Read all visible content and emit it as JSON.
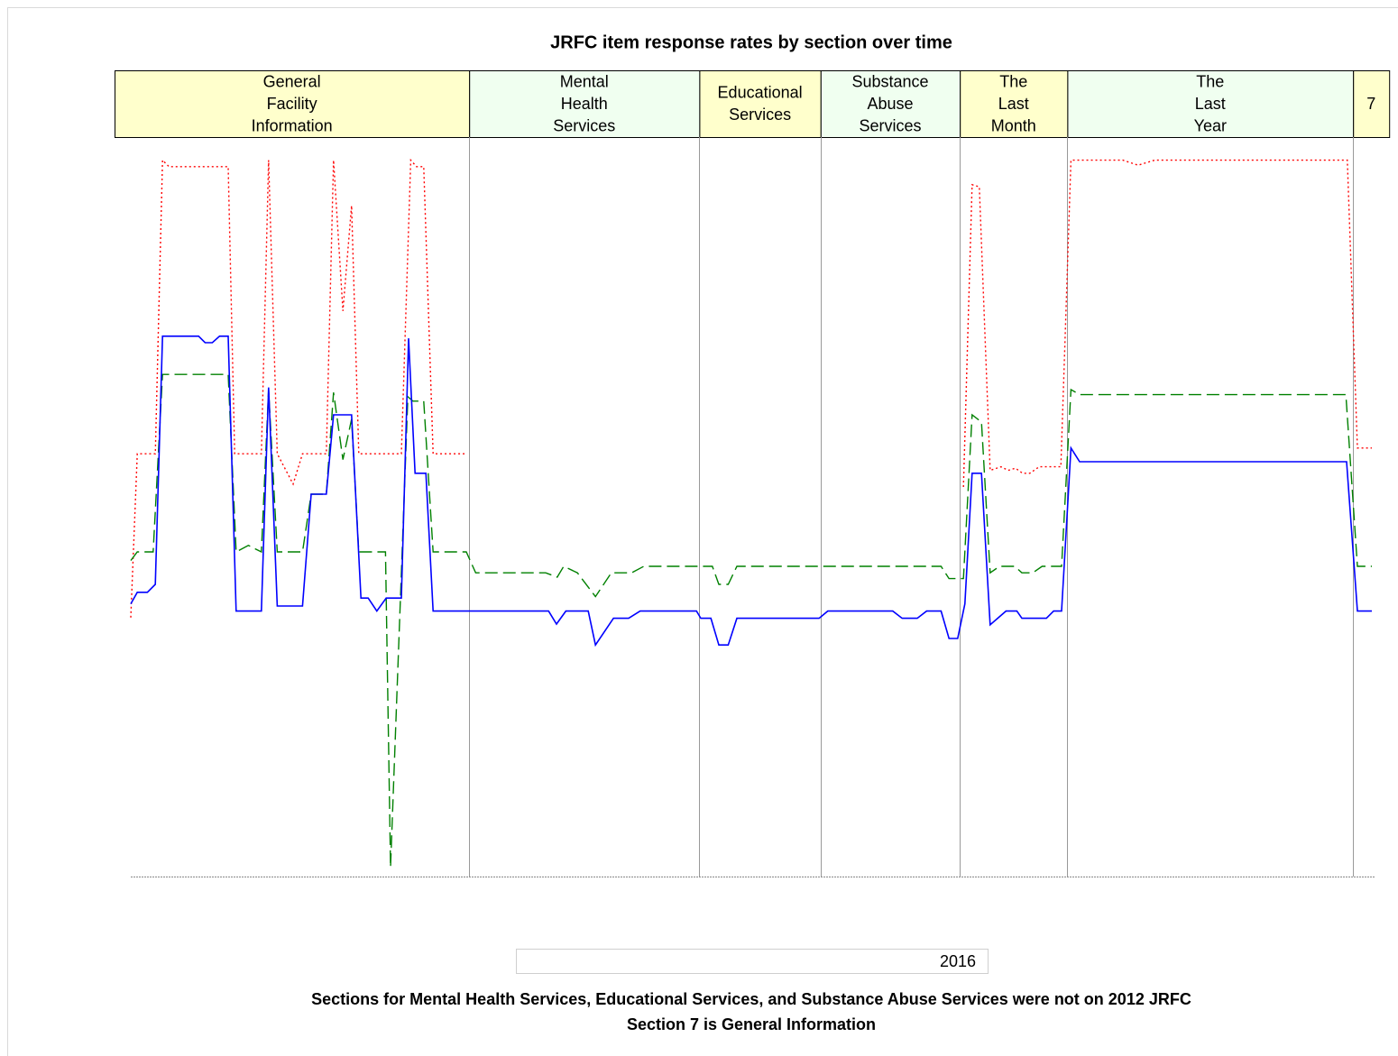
{
  "chart_data": {
    "type": "line",
    "title": "JRFC item response rates by section over time",
    "xlim": [
      0,
      172
    ],
    "ylim": [
      0,
      100
    ],
    "sections": [
      {
        "lines": [
          "General",
          "Facility",
          "Information"
        ],
        "start": -2.25,
        "end": 46.9,
        "color": "#ffffcc"
      },
      {
        "lines": [
          "Mental",
          "Health",
          "Services"
        ],
        "start": 46.9,
        "end": 78.8,
        "color": "#f0fff0"
      },
      {
        "lines": [
          "Educational",
          "Services"
        ],
        "start": 78.8,
        "end": 95.6,
        "color": "#ffffcc"
      },
      {
        "lines": [
          "Substance",
          "Abuse",
          "Services"
        ],
        "start": 95.6,
        "end": 114.9,
        "color": "#f0fff0"
      },
      {
        "lines": [
          "The",
          "Last",
          "Month"
        ],
        "start": 114.9,
        "end": 129.8,
        "color": "#ffffcc"
      },
      {
        "lines": [
          "The",
          "Last",
          "Year"
        ],
        "start": 129.8,
        "end": 169.4,
        "color": "#f0fff0"
      },
      {
        "lines": [
          "7"
        ],
        "start": 169.4,
        "end": 174.4,
        "color": "#ffffcc"
      }
    ],
    "series": [
      {
        "color": "#ff0000",
        "style": "dotted",
        "x": [
          0,
          0.9,
          3.4,
          4.4,
          5.3,
          13.5,
          14.4,
          18.1,
          19.1,
          20.3,
          22.5,
          23.8,
          27.1,
          28.1,
          29.4,
          30.6,
          31.6,
          37.5,
          38.8,
          39.6,
          40.6,
          41.9,
          46.5,
          null,
          115.4,
          116.6,
          117.6,
          119.1,
          120.6,
          121.6,
          122.6,
          123.6,
          124.6,
          125.9,
          128.9,
          130.3,
          137.5,
          139.6,
          141.9,
          168.6,
          170,
          172
        ],
        "values": [
          35.9,
          58.6,
          58.6,
          99.3,
          98.4,
          98.4,
          58.6,
          58.6,
          99.3,
          58.6,
          54.4,
          58.6,
          58.6,
          99.3,
          78.4,
          93,
          58.6,
          58.6,
          99.3,
          98.4,
          98.4,
          58.6,
          58.6,
          null,
          54,
          95.9,
          95.6,
          56.3,
          56.8,
          56.3,
          56.6,
          55.9,
          55.9,
          56.8,
          56.8,
          99.3,
          99.3,
          98.6,
          99.3,
          99.3,
          59.4,
          59.4
        ]
      },
      {
        "color": "#008000",
        "style": "dashed",
        "x": [
          0,
          0.9,
          3.1,
          4.4,
          13.5,
          14.6,
          16.3,
          18.1,
          19.1,
          20.3,
          23.8,
          25,
          27.1,
          28.1,
          29.4,
          30.6,
          31.6,
          35.3,
          36,
          38.4,
          39.1,
          40.6,
          41.9,
          46.5,
          47.8,
          57.5,
          59.1,
          60,
          61.9,
          64.4,
          66.6,
          69.4,
          71.1,
          80.6,
          81.5,
          82.8,
          84,
          112.3,
          113.4,
          115.4,
          116.6,
          117.9,
          119.1,
          120.4,
          122.5,
          123.5,
          125,
          126.3,
          129,
          130.3,
          131.5,
          168.4,
          170,
          172
        ],
        "values": [
          43.8,
          45,
          45,
          69.6,
          69.6,
          45,
          45.9,
          45,
          67.5,
          45,
          45,
          53,
          53,
          67.1,
          57.8,
          63.4,
          45,
          45,
          1.3,
          66.5,
          65.9,
          65.9,
          45,
          45,
          42.1,
          42.1,
          41.5,
          43,
          42.1,
          38.8,
          42.1,
          42.1,
          43,
          43,
          40.5,
          40.5,
          43,
          43,
          41.3,
          41.3,
          64,
          63,
          42.1,
          43,
          43,
          42.1,
          42.1,
          43,
          43,
          67.5,
          66.8,
          66.8,
          43,
          43
        ]
      },
      {
        "color": "#0000ff",
        "style": "solid",
        "x": [
          0,
          0.9,
          2.3,
          3.4,
          4.4,
          9.4,
          10.3,
          11.3,
          12.3,
          13.5,
          14.6,
          18.1,
          19.1,
          20.3,
          23.8,
          25,
          27.1,
          28.1,
          30.6,
          31.9,
          32.9,
          34.1,
          35.4,
          37.5,
          38.5,
          39.4,
          40.9,
          41.9,
          57.9,
          59,
          60.3,
          63.4,
          64.4,
          66.9,
          69,
          70.6,
          78.4,
          79,
          80.4,
          81.5,
          82.8,
          84,
          95.4,
          96.6,
          105.6,
          106.9,
          109,
          110.3,
          112.3,
          113.4,
          114.6,
          115.6,
          116.6,
          117.9,
          119.1,
          121.3,
          122.8,
          123.5,
          126.9,
          127.9,
          129,
          130.3,
          131.5,
          168.5,
          170,
          172
        ],
        "values": [
          37.8,
          39.4,
          39.4,
          40.5,
          74.9,
          74.9,
          74,
          74,
          74.9,
          74.9,
          36.8,
          36.8,
          67.8,
          37.5,
          37.5,
          53,
          53,
          64,
          64,
          38.6,
          38.6,
          36.8,
          38.6,
          38.6,
          74.6,
          55.9,
          55.9,
          36.8,
          36.8,
          35,
          36.8,
          36.8,
          32.1,
          35.8,
          35.8,
          36.8,
          36.8,
          35.8,
          35.8,
          32.1,
          32.1,
          35.8,
          35.8,
          36.8,
          36.8,
          35.8,
          35.8,
          36.8,
          36.8,
          33,
          33,
          37.8,
          55.9,
          55.9,
          34.9,
          36.8,
          36.8,
          35.8,
          35.8,
          36.8,
          36.8,
          59.4,
          57.5,
          57.5,
          36.8,
          36.8
        ]
      }
    ],
    "legend_text": "2016",
    "notes": [
      "Sections for Mental Health Services, Educational Services, and Substance Abuse Services were not on 2012 JRFC",
      "Section 7 is General Information"
    ]
  }
}
